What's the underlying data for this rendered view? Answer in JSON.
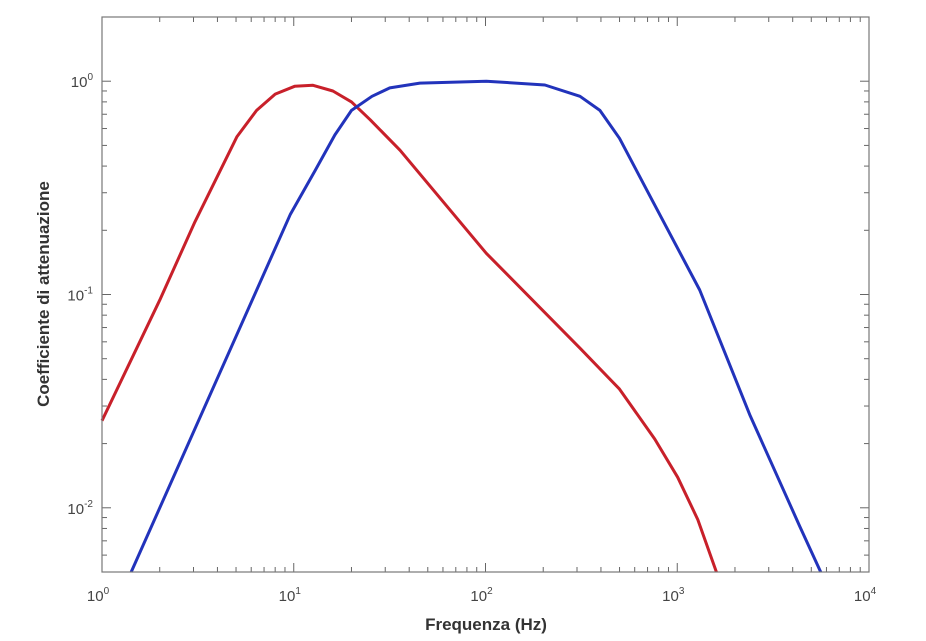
{
  "chart_data": {
    "type": "line",
    "title": "",
    "xlabel": "Frequenza (Hz)",
    "ylabel": "Coefficiente di attenuazione",
    "xscale": "log",
    "yscale": "log",
    "xlim": [
      1,
      10000
    ],
    "ylim": [
      0.005,
      2.0
    ],
    "xticks": [
      {
        "base": "10",
        "exp": "0",
        "value": 1
      },
      {
        "base": "10",
        "exp": "1",
        "value": 10
      },
      {
        "base": "10",
        "exp": "2",
        "value": 100
      },
      {
        "base": "10",
        "exp": "3",
        "value": 1000
      },
      {
        "base": "10",
        "exp": "4",
        "value": 10000
      }
    ],
    "yticks": [
      {
        "base": "10",
        "exp": "-2",
        "value": 0.01
      },
      {
        "base": "10",
        "exp": "-1",
        "value": 0.1
      },
      {
        "base": "10",
        "exp": "0",
        "value": 1
      }
    ],
    "grid": false,
    "series": [
      {
        "name": "red",
        "color": "#c8202a",
        "x": [
          1,
          2,
          3.05,
          5.06,
          6.4,
          8,
          10.1,
          12.6,
          16,
          20,
          25,
          35.8,
          101,
          311,
          500,
          764,
          1006,
          1280,
          1600
        ],
        "y": [
          0.0256,
          0.094,
          0.219,
          0.55,
          0.73,
          0.87,
          0.947,
          0.957,
          0.9,
          0.8,
          0.66,
          0.475,
          0.156,
          0.056,
          0.036,
          0.021,
          0.0139,
          0.0088,
          0.005
        ]
      },
      {
        "name": "blue",
        "color": "#2233bb",
        "x": [
          1.42,
          9.6,
          12.9,
          16.4,
          20,
          25.6,
          31.7,
          45.5,
          101,
          204,
          311,
          395,
          500,
          720,
          1310,
          2400,
          4350,
          5600
        ],
        "y": [
          0.005,
          0.238,
          0.38,
          0.56,
          0.73,
          0.85,
          0.93,
          0.98,
          1.0,
          0.96,
          0.85,
          0.73,
          0.54,
          0.29,
          0.105,
          0.027,
          0.0082,
          0.005
        ]
      }
    ]
  }
}
